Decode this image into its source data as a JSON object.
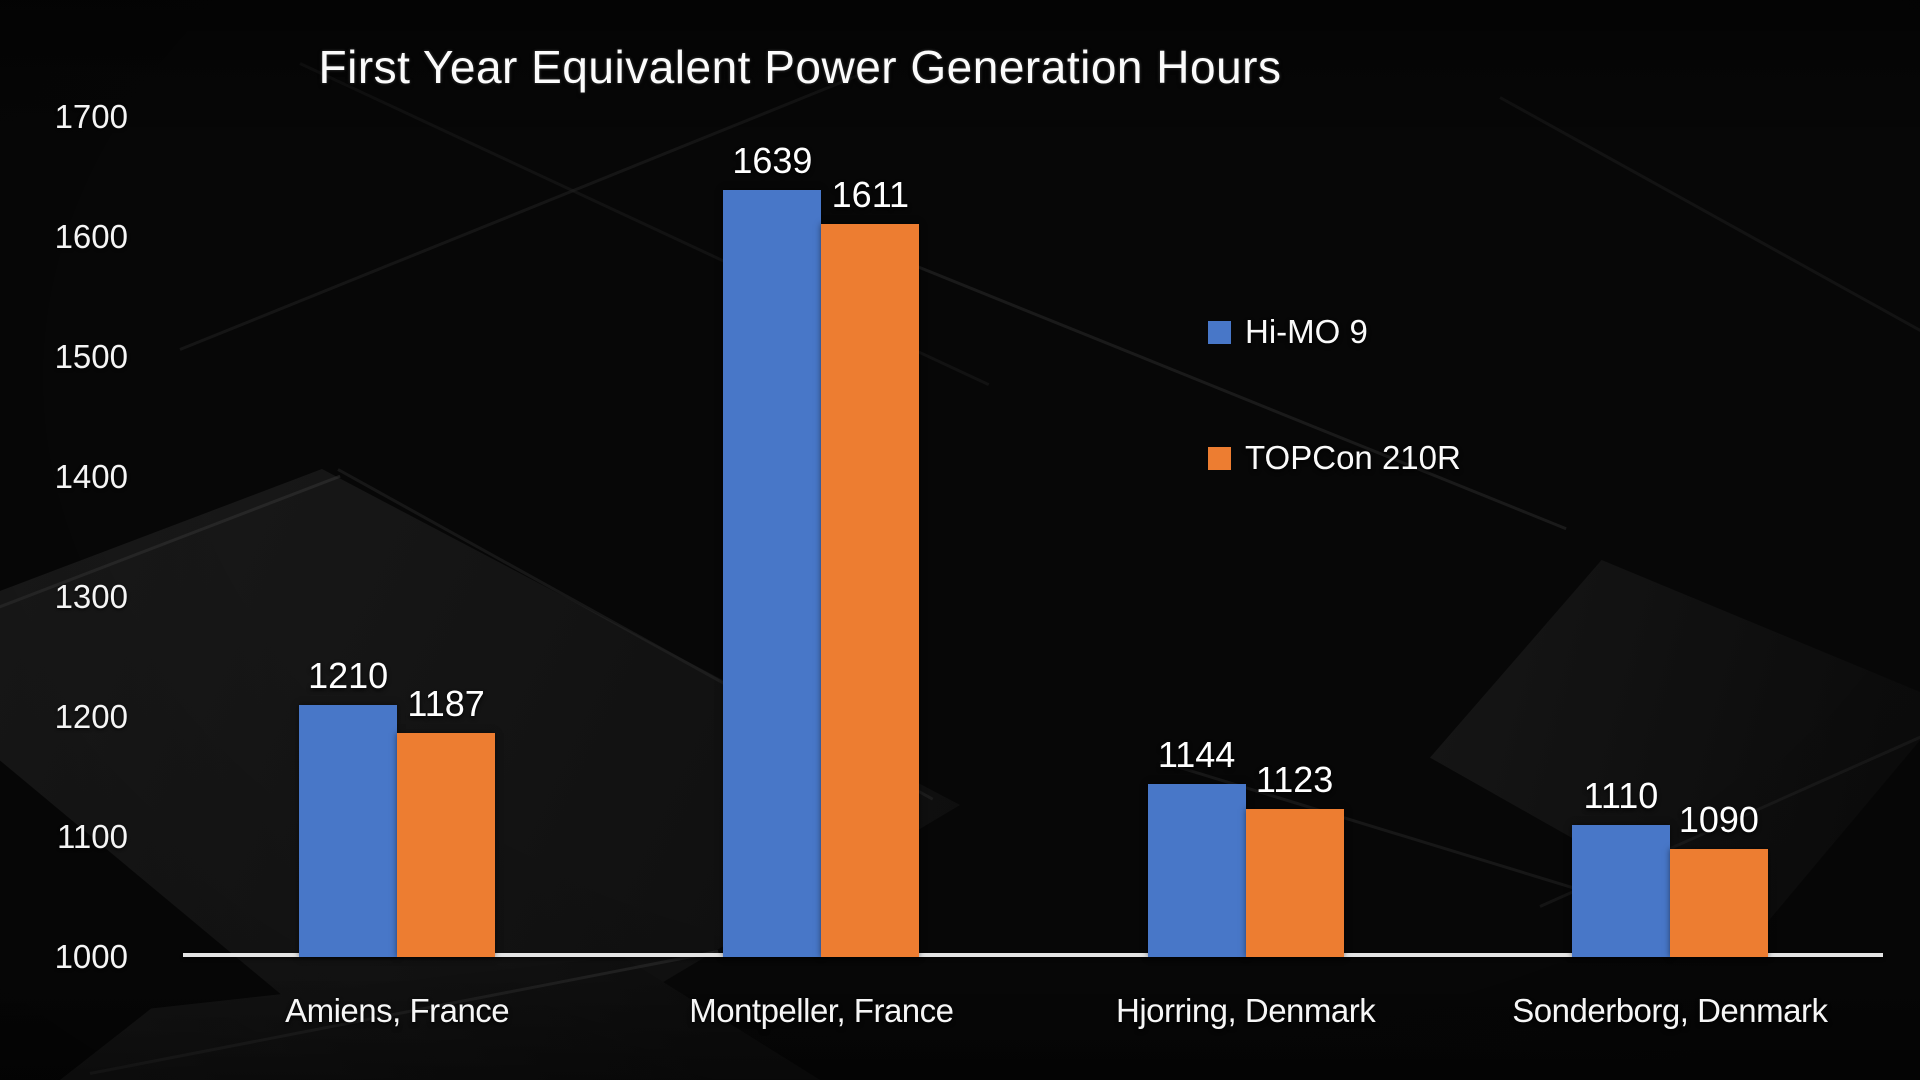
{
  "chart_data": {
    "type": "bar",
    "title": "First Year Equivalent Power Generation Hours",
    "categories": [
      "Amiens, France",
      "Montpeller, France",
      "Hjorring, Denmark",
      "Sonderborg, Denmark"
    ],
    "series": [
      {
        "name": "Hi-MO 9",
        "color": "#4877C8",
        "values": [
          1210,
          1639,
          1144,
          1110
        ]
      },
      {
        "name": "TOPCon 210R",
        "color": "#ED7D31",
        "values": [
          1187,
          1611,
          1123,
          1090
        ]
      }
    ],
    "ylim": [
      1000,
      1700
    ],
    "yticks": [
      1000,
      1100,
      1200,
      1300,
      1400,
      1500,
      1600,
      1700
    ],
    "grid": false,
    "data_labels": true,
    "legend_position": "center-right",
    "axis_color": "#e4e4e4",
    "text_color": "#ffffff",
    "background": "dark solar panel photo"
  }
}
